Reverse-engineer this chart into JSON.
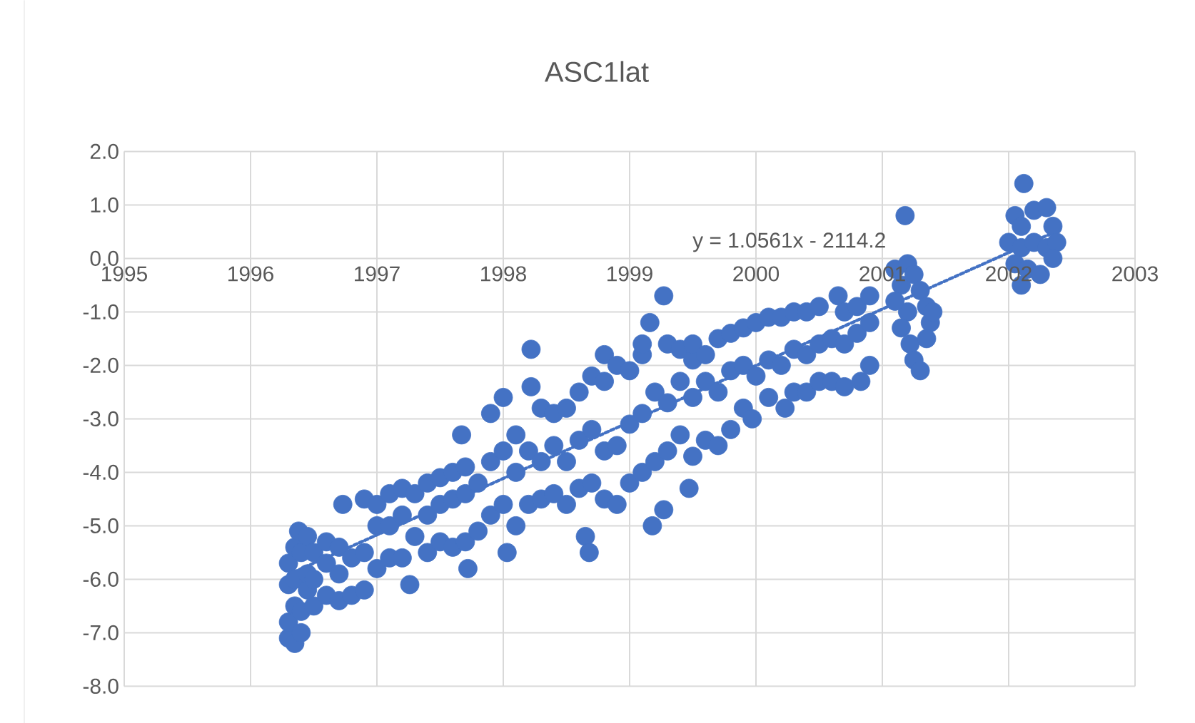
{
  "chart_data": {
    "type": "scatter",
    "title": "ASC1lat",
    "xlim": [
      1995,
      2003
    ],
    "xticks": [
      1995,
      1996,
      1997,
      1998,
      1999,
      2000,
      2001,
      2002,
      2003
    ],
    "ylim": [
      -8,
      2
    ],
    "yticks": [
      {
        "value": 2,
        "label": "2.0"
      },
      {
        "value": 1,
        "label": "1.0"
      },
      {
        "value": 0,
        "label": "0.0"
      },
      {
        "value": -1,
        "label": "-1.0"
      },
      {
        "value": -2,
        "label": "-2.0"
      },
      {
        "value": -3,
        "label": "-3.0"
      },
      {
        "value": -4,
        "label": "-4.0"
      },
      {
        "value": -5,
        "label": "-5.0"
      },
      {
        "value": -6,
        "label": "-6.0"
      },
      {
        "value": -7,
        "label": "-7.0"
      },
      {
        "value": -8,
        "label": "-8.0"
      }
    ],
    "grid": true,
    "annotations": [
      "y = 1.0561x - 2114.2"
    ],
    "series": [
      {
        "type": "line",
        "color": "#4472c4",
        "line_style": "dotted",
        "marker": "none",
        "x": [
          1996.3,
          2002.4
        ],
        "values": [
          -5.91,
          0.53
        ]
      },
      {
        "color": "#4472c4",
        "marker": "circle",
        "x": [
          1996.3,
          1996.3,
          1996.3,
          1996.3,
          1996.35,
          1996.35,
          1996.35,
          1996.35,
          1996.38,
          1996.4,
          1996.4,
          1996.4,
          1996.45,
          1996.45,
          1996.45,
          1996.5,
          1996.5,
          1996.5,
          1996.6,
          1996.6,
          1996.6,
          1996.7,
          1996.7,
          1996.7,
          1996.8,
          1996.8,
          1996.73,
          1996.9,
          1996.9,
          1996.9,
          1997.0,
          1997.0,
          1997.0,
          1997.1,
          1997.1,
          1997.1,
          1997.2,
          1997.2,
          1997.2,
          1997.26,
          1997.3,
          1997.3,
          1997.4,
          1997.4,
          1997.4,
          1997.5,
          1997.5,
          1997.5,
          1997.6,
          1997.6,
          1997.6,
          1997.7,
          1997.7,
          1997.7,
          1997.72,
          1997.8,
          1997.8,
          1997.67,
          1997.9,
          1997.9,
          1997.9,
          1998.03,
          1998.0,
          1998.0,
          1998.0,
          1998.1,
          1998.1,
          1998.1,
          1998.2,
          1998.2,
          1998.22,
          1998.22,
          1998.3,
          1998.3,
          1998.3,
          1998.4,
          1998.4,
          1998.4,
          1998.5,
          1998.5,
          1998.5,
          1998.6,
          1998.6,
          1998.6,
          1998.65,
          1998.68,
          1998.7,
          1998.7,
          1998.7,
          1998.8,
          1998.8,
          1998.8,
          1998.8,
          1998.9,
          1998.9,
          1998.9,
          1999.0,
          1999.0,
          1999.0,
          1999.1,
          1999.1,
          1999.1,
          1999.1,
          1999.18,
          1999.27,
          1999.2,
          1999.2,
          1999.16,
          1999.27,
          1999.3,
          1999.3,
          1999.3,
          1999.47,
          1999.4,
          1999.4,
          1999.4,
          1999.5,
          1999.5,
          1999.5,
          1999.5,
          1999.6,
          1999.6,
          1999.6,
          1999.7,
          1999.7,
          1999.7,
          1999.8,
          1999.8,
          1999.8,
          1999.9,
          1999.9,
          1999.9,
          1999.97,
          2000.0,
          2000.0,
          2000.1,
          2000.1,
          2000.1,
          2000.23,
          2000.2,
          2000.2,
          2000.3,
          2000.3,
          2000.3,
          2000.4,
          2000.4,
          2000.4,
          2000.5,
          2000.5,
          2000.5,
          2000.6,
          2000.6,
          2000.65,
          2000.7,
          2000.7,
          2000.7,
          2000.83,
          2000.8,
          2000.8,
          2000.9,
          2000.9,
          2000.9,
          2001.18,
          2001.1,
          2001.15,
          2001.2,
          2001.25,
          2001.3,
          2001.35,
          2001.38,
          2001.2,
          2001.15,
          2001.1,
          2001.22,
          2001.25,
          2001.3,
          2001.35,
          2001.4,
          2002.12,
          2002.05,
          2002.1,
          2002.2,
          2002.3,
          2002.35,
          2002.0,
          2002.1,
          2002.2,
          2002.3,
          2002.38,
          2002.05,
          2002.15,
          2002.25,
          2002.1,
          2002.35
        ],
        "values": [
          -7.1,
          -6.8,
          -6.1,
          -5.7,
          -7.2,
          -6.5,
          -6.0,
          -5.4,
          -5.1,
          -7.0,
          -6.6,
          -5.5,
          -6.2,
          -5.9,
          -5.2,
          -6.5,
          -6.0,
          -5.5,
          -6.3,
          -5.7,
          -5.3,
          -6.4,
          -5.9,
          -5.4,
          -6.3,
          -5.6,
          -4.6,
          -6.2,
          -5.5,
          -4.5,
          -5.8,
          -5.0,
          -4.6,
          -5.6,
          -5.0,
          -4.4,
          -5.6,
          -4.8,
          -4.3,
          -6.1,
          -5.2,
          -4.4,
          -5.5,
          -4.8,
          -4.2,
          -5.3,
          -4.6,
          -4.1,
          -5.4,
          -4.5,
          -4.0,
          -5.3,
          -4.4,
          -3.9,
          -5.8,
          -5.1,
          -4.2,
          -3.3,
          -4.8,
          -3.8,
          -2.9,
          -5.5,
          -4.6,
          -3.6,
          -2.6,
          -5.0,
          -4.0,
          -3.3,
          -4.6,
          -3.6,
          -2.4,
          -1.7,
          -4.5,
          -3.8,
          -2.8,
          -4.4,
          -3.5,
          -2.9,
          -4.6,
          -3.8,
          -2.8,
          -4.3,
          -3.4,
          -2.5,
          -5.2,
          -5.5,
          -4.2,
          -3.2,
          -2.2,
          -4.5,
          -3.6,
          -2.3,
          -1.8,
          -4.6,
          -3.5,
          -2.0,
          -4.2,
          -3.1,
          -2.1,
          -4.0,
          -2.9,
          -1.8,
          -1.6,
          -5.0,
          -4.7,
          -3.8,
          -2.5,
          -1.2,
          -0.7,
          -3.6,
          -2.7,
          -1.6,
          -4.3,
          -3.3,
          -2.3,
          -1.7,
          -3.7,
          -2.6,
          -1.9,
          -1.6,
          -3.4,
          -2.3,
          -1.8,
          -3.5,
          -2.5,
          -1.5,
          -3.2,
          -2.1,
          -1.4,
          -2.8,
          -2.0,
          -1.3,
          -3.0,
          -2.2,
          -1.2,
          -2.6,
          -1.9,
          -1.1,
          -2.8,
          -2.0,
          -1.1,
          -2.5,
          -1.7,
          -1.0,
          -2.5,
          -1.8,
          -1.0,
          -2.3,
          -1.6,
          -0.9,
          -2.3,
          -1.5,
          -0.7,
          -2.4,
          -1.6,
          -1.0,
          -2.3,
          -1.4,
          -0.9,
          -2.0,
          -1.2,
          -0.7,
          0.8,
          -0.2,
          -0.5,
          -0.1,
          -0.3,
          -0.6,
          -0.9,
          -1.2,
          -1.0,
          -1.3,
          -0.8,
          -1.6,
          -1.9,
          -2.1,
          -1.5,
          -1.0,
          1.4,
          0.8,
          0.6,
          0.9,
          0.95,
          0.6,
          0.3,
          0.2,
          0.3,
          0.2,
          0.3,
          -0.1,
          -0.2,
          -0.3,
          -0.5,
          0.0
        ]
      }
    ]
  }
}
